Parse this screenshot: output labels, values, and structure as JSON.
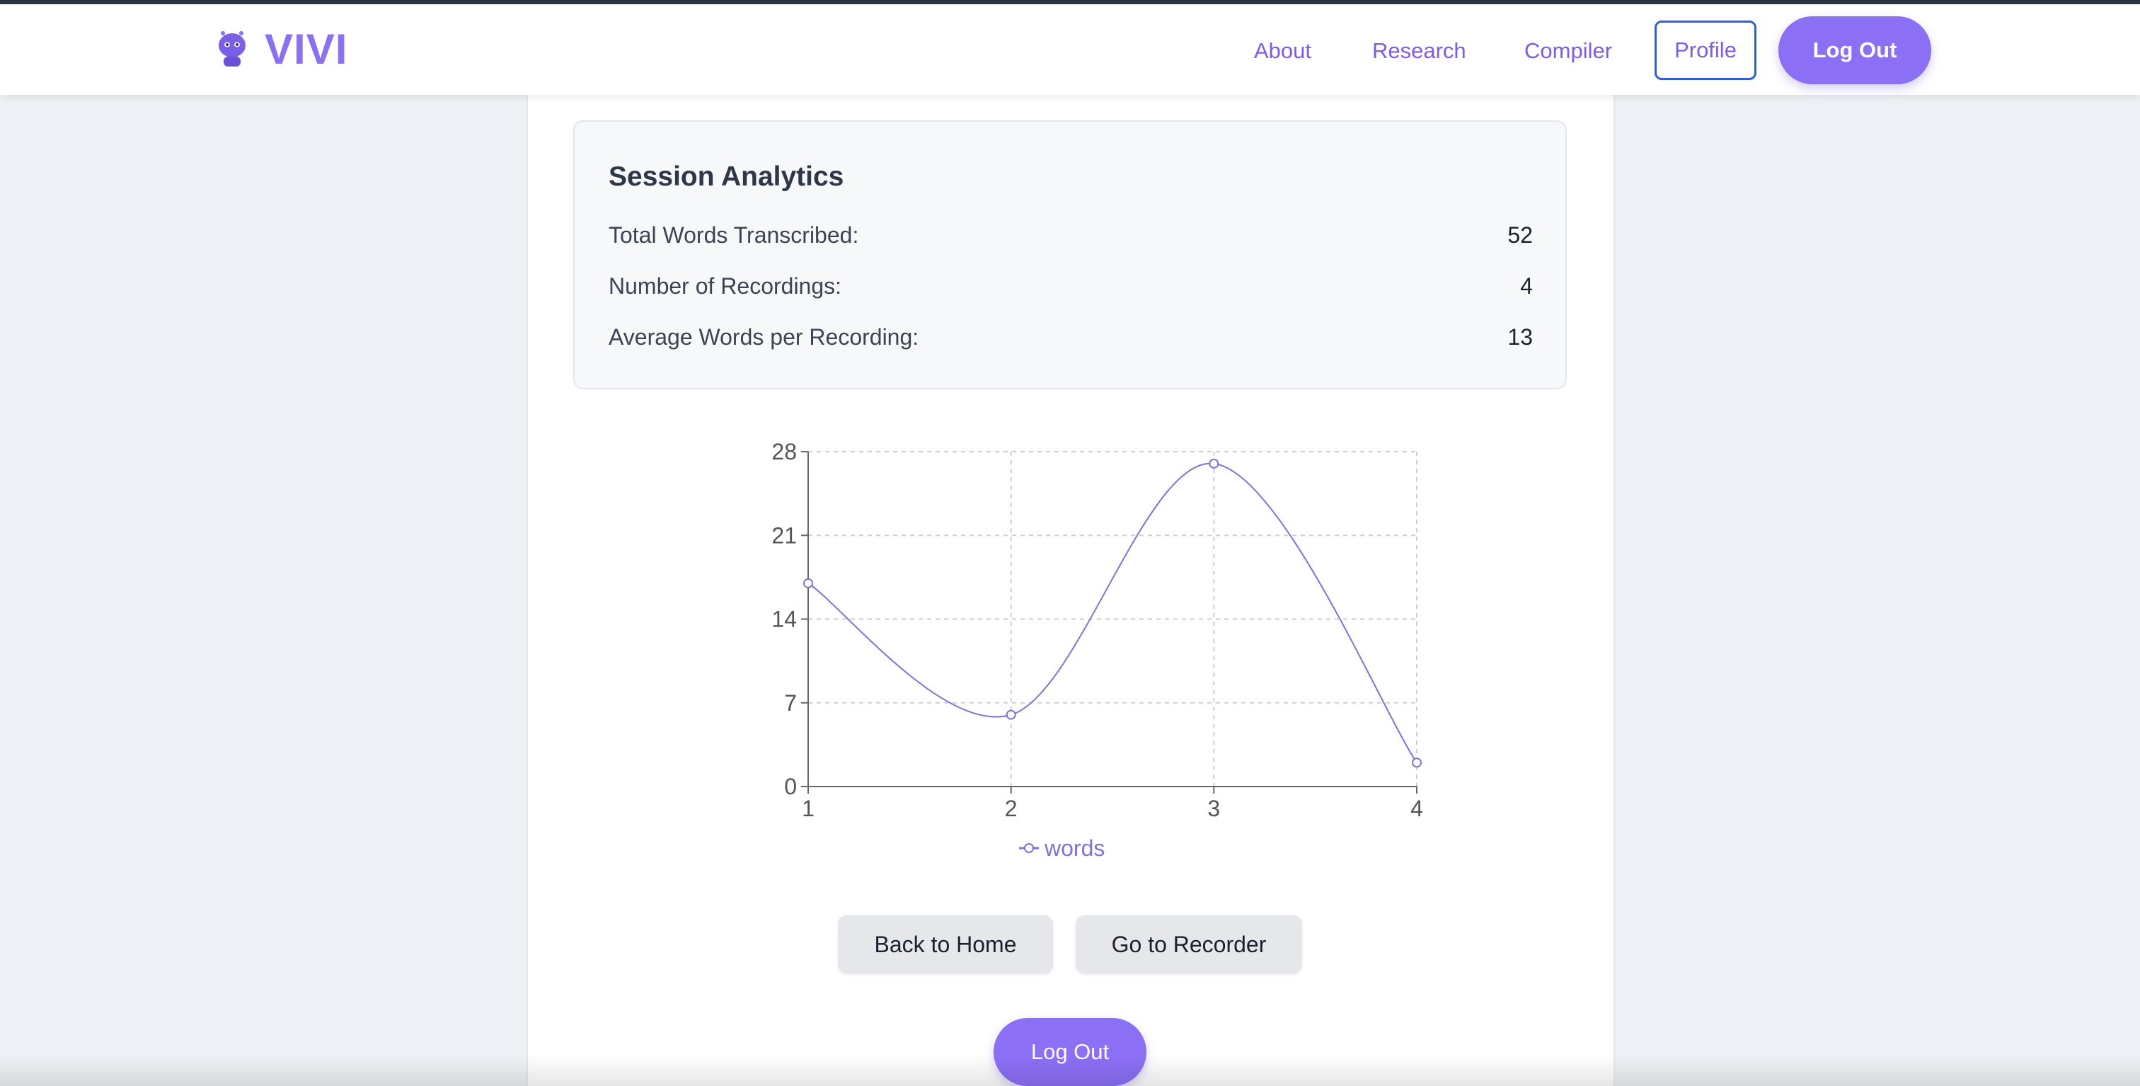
{
  "navbar": {
    "brand": "VIVI",
    "links": [
      {
        "label": "About"
      },
      {
        "label": "Research"
      },
      {
        "label": "Compiler"
      }
    ],
    "profile_label": "Profile",
    "logout_label": "Log Out"
  },
  "analytics": {
    "title": "Session Analytics",
    "stats": [
      {
        "label": "Total Words Transcribed:",
        "value": "52"
      },
      {
        "label": "Number of Recordings:",
        "value": "4"
      },
      {
        "label": "Average Words per Recording:",
        "value": "13"
      }
    ]
  },
  "chart_data": {
    "type": "line",
    "x": [
      1,
      2,
      3,
      4
    ],
    "series": [
      {
        "name": "words",
        "values": [
          17,
          6,
          27,
          2
        ]
      }
    ],
    "xticks": [
      "1",
      "2",
      "3",
      "4"
    ],
    "yticks": [
      "0",
      "7",
      "14",
      "21",
      "28"
    ],
    "ylim": [
      0,
      28
    ],
    "grid": true,
    "legend": "bottom",
    "color": "#8271d9",
    "curve": "smooth"
  },
  "actions": {
    "back_home": "Back to Home",
    "go_recorder": "Go to Recorder",
    "logout": "Log Out"
  },
  "colors": {
    "brand": "#8b6ff5",
    "link": "#7c5ce8",
    "profile_border": "#2f5fd0"
  }
}
